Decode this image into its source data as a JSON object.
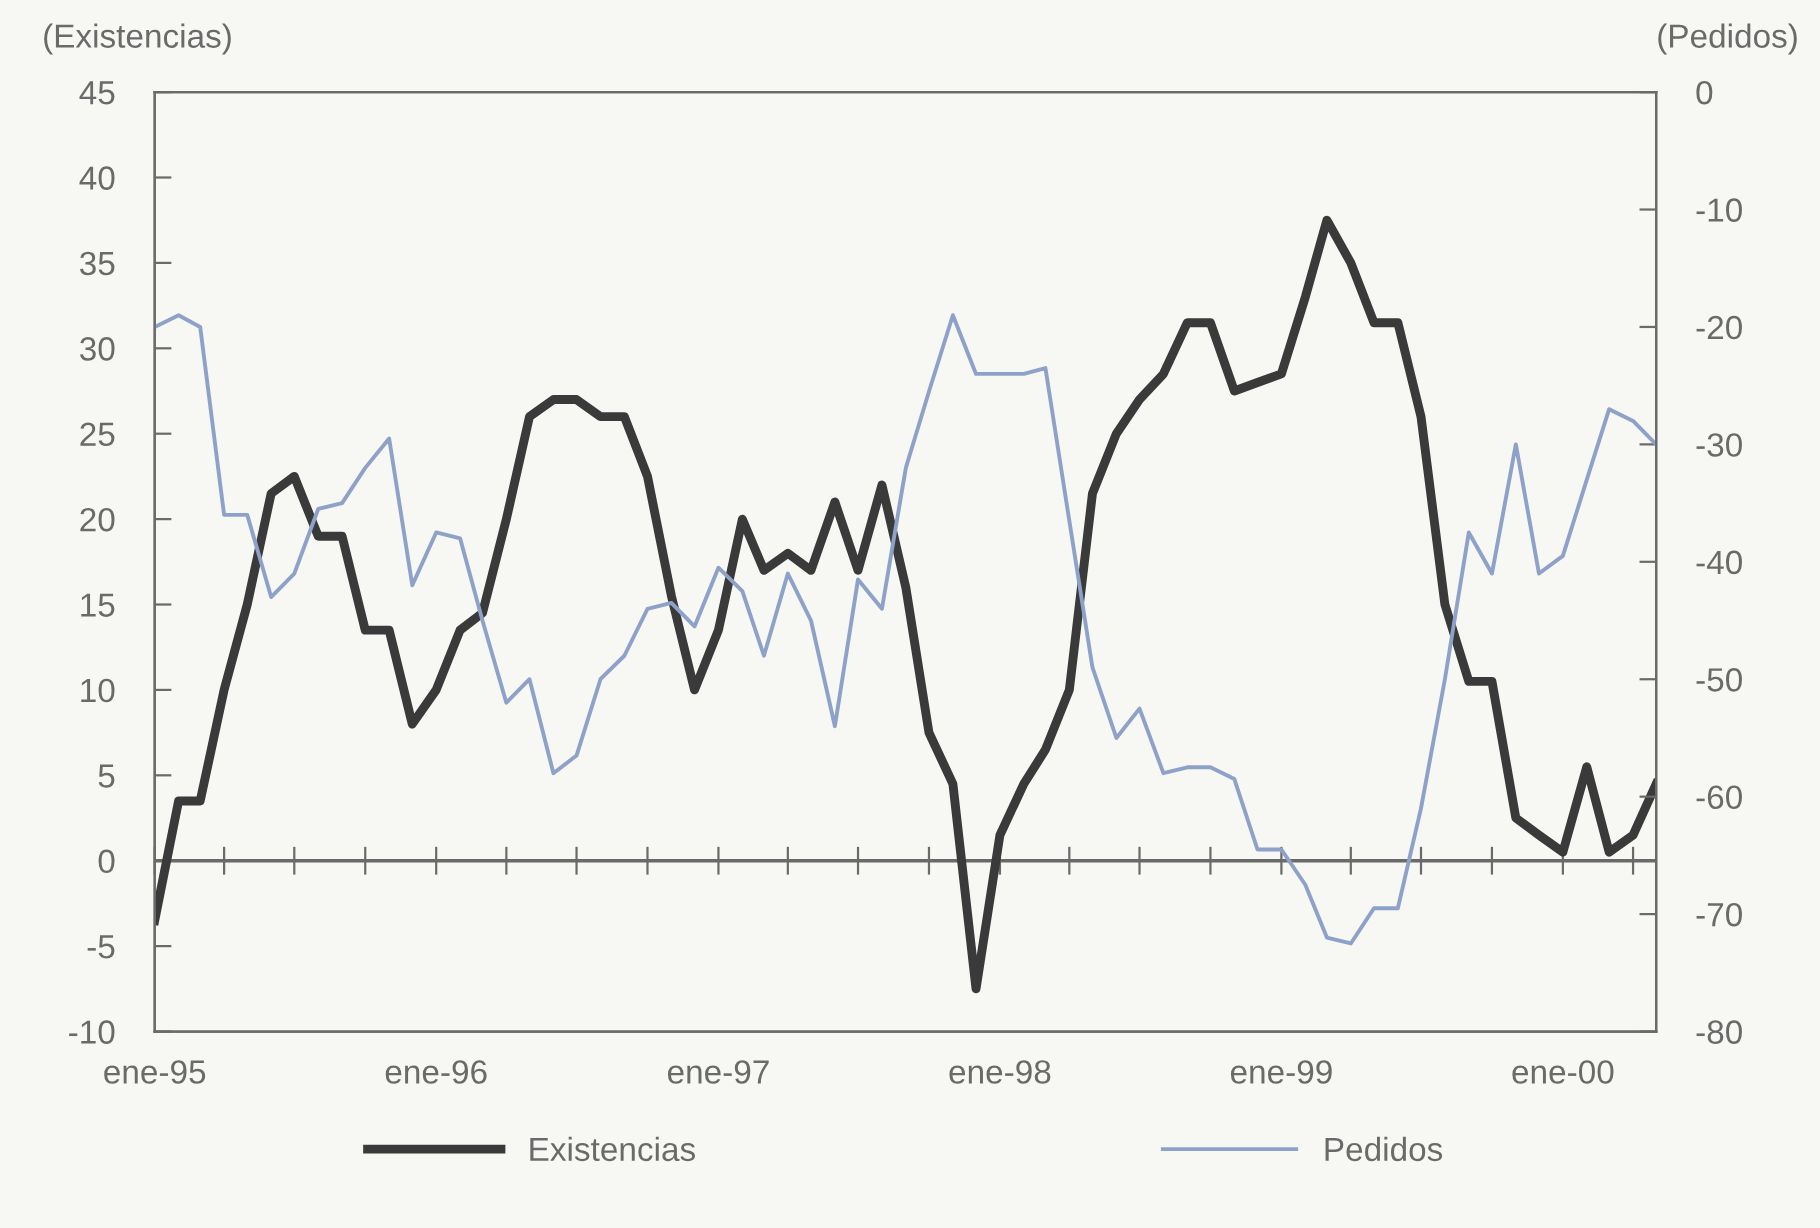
{
  "chart_data": {
    "type": "line",
    "ylabel": "(Existencias)",
    "y2label": "(Pedidos)",
    "x": [
      "1995-01",
      "1995-02",
      "1995-03",
      "1995-04",
      "1995-05",
      "1995-06",
      "1995-07",
      "1995-08",
      "1995-09",
      "1995-10",
      "1995-11",
      "1995-12",
      "1996-01",
      "1996-02",
      "1996-03",
      "1996-04",
      "1996-05",
      "1996-06",
      "1996-07",
      "1996-08",
      "1996-09",
      "1996-10",
      "1996-11",
      "1996-12",
      "1997-01",
      "1997-02",
      "1997-03",
      "1997-04",
      "1997-05",
      "1997-06",
      "1997-07",
      "1997-08",
      "1997-09",
      "1997-10",
      "1997-11",
      "1997-12",
      "1998-01",
      "1998-02",
      "1998-03",
      "1998-04",
      "1998-05",
      "1998-06",
      "1998-07",
      "1998-08",
      "1998-09",
      "1998-10",
      "1998-11",
      "1998-12",
      "1999-01",
      "1999-02",
      "1999-03",
      "1999-04",
      "1999-05",
      "1999-06",
      "1999-07",
      "1999-08",
      "1999-09",
      "1999-10",
      "1999-11",
      "1999-12",
      "2000-01",
      "2000-02",
      "2000-03",
      "2000-04",
      "2000-05"
    ],
    "series": [
      {
        "name": "Existencias",
        "color": "#3a3a3a",
        "axis": "y",
        "values": [
          -3.5,
          3.5,
          3.5,
          10,
          15,
          21.5,
          22.5,
          19,
          19,
          13.5,
          13.5,
          8,
          10,
          13.5,
          14.5,
          20,
          26,
          27,
          27,
          26,
          26,
          22.5,
          15.5,
          10,
          13.5,
          20,
          17,
          18,
          17,
          21,
          17,
          22,
          16,
          7.5,
          4.5,
          -7.5,
          1.5,
          4.5,
          6.5,
          10,
          21.5,
          25,
          27,
          28.5,
          31.5,
          31.5,
          27.5,
          28,
          28.5,
          33,
          37.5,
          35,
          31.5,
          31.5,
          26,
          15,
          10.5,
          10.5,
          2.5,
          1.5,
          0.5,
          5.5,
          0.5,
          1.5,
          4.5
        ]
      },
      {
        "name": "Pedidos",
        "color": "#8ea2c9",
        "axis": "y2",
        "values": [
          -20,
          -19,
          -20,
          -36,
          -36,
          -43,
          -41,
          -35.5,
          -35,
          -32,
          -29.5,
          -42,
          -37.5,
          -38,
          -45,
          -52,
          -50,
          -58,
          -56.5,
          -50,
          -48,
          -44,
          -43.5,
          -45.5,
          -40.5,
          -42.5,
          -48,
          -41,
          -45,
          -54,
          -41.5,
          -44,
          -32,
          -25.5,
          -19,
          -24,
          -24,
          -24,
          -23.5,
          -36.5,
          -49,
          -55,
          -52.5,
          -58,
          -57.5,
          -57.5,
          -58.5,
          -64.5,
          -64.5,
          -67.5,
          -72,
          -72.5,
          -69.5,
          -69.5,
          -61,
          -50,
          -37.5,
          -41,
          -30,
          -41,
          -39.5,
          -33,
          -27,
          -28,
          -30
        ]
      }
    ],
    "xlim": [
      "1995-01",
      "2000-05"
    ],
    "xticks": [
      {
        "value": "1995-01",
        "label": "ene-95"
      },
      {
        "value": "1995-04",
        "label": null
      },
      {
        "value": "1995-07",
        "label": null
      },
      {
        "value": "1995-10",
        "label": null
      },
      {
        "value": "1996-01",
        "label": "ene-96"
      },
      {
        "value": "1996-04",
        "label": null
      },
      {
        "value": "1996-07",
        "label": null
      },
      {
        "value": "1996-10",
        "label": null
      },
      {
        "value": "1997-01",
        "label": "ene-97"
      },
      {
        "value": "1997-04",
        "label": null
      },
      {
        "value": "1997-07",
        "label": null
      },
      {
        "value": "1997-10",
        "label": null
      },
      {
        "value": "1998-01",
        "label": "ene-98"
      },
      {
        "value": "1998-04",
        "label": null
      },
      {
        "value": "1998-07",
        "label": null
      },
      {
        "value": "1998-10",
        "label": null
      },
      {
        "value": "1999-01",
        "label": "ene-99"
      },
      {
        "value": "1999-04",
        "label": null
      },
      {
        "value": "1999-07",
        "label": null
      },
      {
        "value": "1999-10",
        "label": null
      },
      {
        "value": "2000-01",
        "label": "ene-00"
      },
      {
        "value": "2000-04",
        "label": null
      }
    ],
    "ylim": [
      -10,
      45
    ],
    "yticks": [
      -10,
      -5,
      0,
      5,
      10,
      15,
      20,
      25,
      30,
      35,
      40,
      45
    ],
    "y2lim": [
      -80,
      0
    ],
    "y2ticks": [
      -80,
      -70,
      -60,
      -50,
      -40,
      -30,
      -20,
      -10,
      0
    ],
    "ref_lines": [
      {
        "axis": "y",
        "value": 0,
        "label": null,
        "color": "#6a6a6a"
      }
    ],
    "legend": "bottom",
    "marker": "none",
    "line_style": "solid"
  }
}
